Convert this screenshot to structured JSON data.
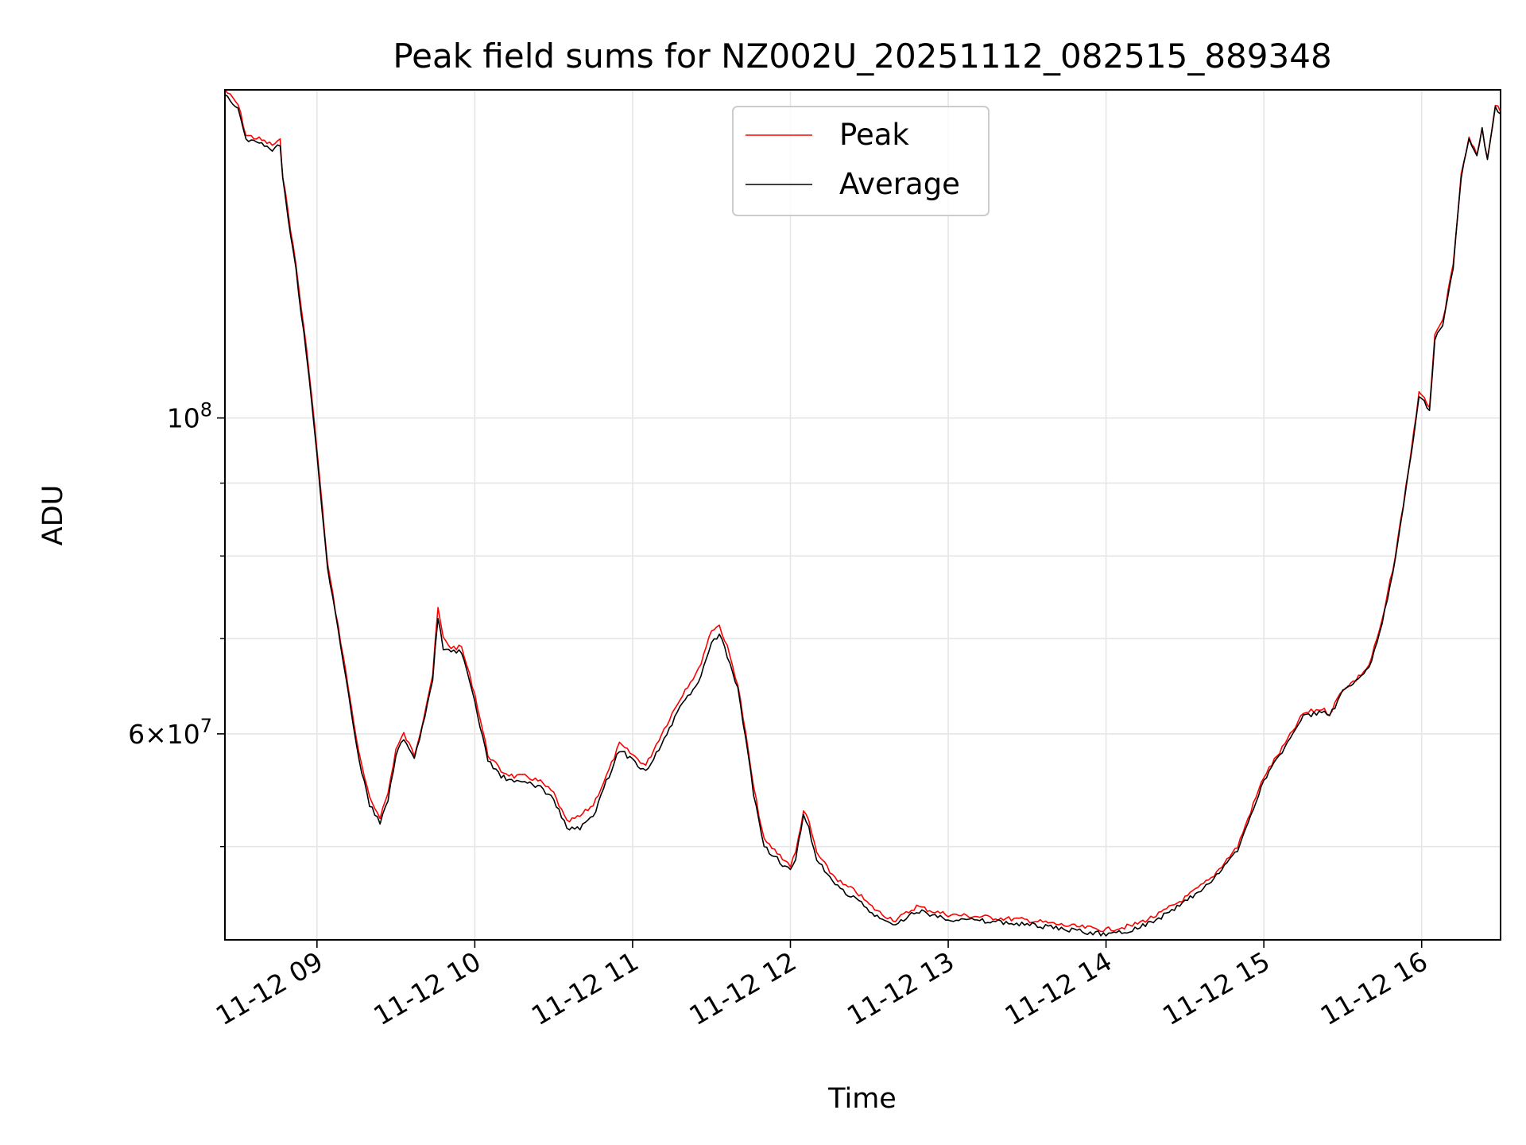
{
  "chart_data": {
    "type": "line",
    "title": "Peak field sums for NZ002U_20251112_082515_889348",
    "xlabel": "Time",
    "ylabel": "ADU",
    "y_scale": "log",
    "grid": true,
    "legend_position": "top-center",
    "xlim": [
      "2025-11-12 08:25",
      "2025-11-12 16:30"
    ],
    "ylim": [
      43000000,
      170000000
    ],
    "x_ticks": [
      {
        "value": "2025-11-12 09:00",
        "label": "11-12 09"
      },
      {
        "value": "2025-11-12 10:00",
        "label": "11-12 10"
      },
      {
        "value": "2025-11-12 11:00",
        "label": "11-12 11"
      },
      {
        "value": "2025-11-12 12:00",
        "label": "11-12 12"
      },
      {
        "value": "2025-11-12 13:00",
        "label": "11-12 13"
      },
      {
        "value": "2025-11-12 14:00",
        "label": "11-12 14"
      },
      {
        "value": "2025-11-12 15:00",
        "label": "11-12 15"
      },
      {
        "value": "2025-11-12 16:00",
        "label": "11-12 16"
      }
    ],
    "y_ticks_major": [
      {
        "value": 100000000,
        "base": "10",
        "exp": "8"
      },
      {
        "value": 60000000,
        "mantissa": "6",
        "base": "10",
        "exp": "7"
      }
    ],
    "y_ticks_minor": [
      50000000,
      70000000,
      80000000,
      90000000
    ],
    "series": [
      {
        "name": "Peak",
        "color": "#ff0000",
        "points": [
          [
            "2025-11-12 08:25",
            170000000
          ],
          [
            "2025-11-12 08:30",
            166000000
          ],
          [
            "2025-11-12 08:33",
            158000000
          ],
          [
            "2025-11-12 08:38",
            157000000
          ],
          [
            "2025-11-12 08:43",
            155500000
          ],
          [
            "2025-11-12 08:46",
            156500000
          ],
          [
            "2025-11-12 08:47",
            148000000
          ],
          [
            "2025-11-12 08:52",
            128000000
          ],
          [
            "2025-11-12 08:57",
            108000000
          ],
          [
            "2025-11-12 09:00",
            95000000
          ],
          [
            "2025-11-12 09:04",
            79000000
          ],
          [
            "2025-11-12 09:10",
            68000000
          ],
          [
            "2025-11-12 09:16",
            58000000
          ],
          [
            "2025-11-12 09:20",
            54000000
          ],
          [
            "2025-11-12 09:24",
            52500000
          ],
          [
            "2025-11-12 09:27",
            54500000
          ],
          [
            "2025-11-12 09:30",
            58500000
          ],
          [
            "2025-11-12 09:33",
            60000000
          ],
          [
            "2025-11-12 09:37",
            58000000
          ],
          [
            "2025-11-12 09:40",
            61000000
          ],
          [
            "2025-11-12 09:42",
            63500000
          ],
          [
            "2025-11-12 09:44",
            66000000
          ],
          [
            "2025-11-12 09:46",
            73500000
          ],
          [
            "2025-11-12 09:48",
            70000000
          ],
          [
            "2025-11-12 09:51",
            69000000
          ],
          [
            "2025-11-12 09:55",
            69000000
          ],
          [
            "2025-11-12 10:00",
            64000000
          ],
          [
            "2025-11-12 10:05",
            58000000
          ],
          [
            "2025-11-12 10:10",
            56500000
          ],
          [
            "2025-11-12 10:15",
            56000000
          ],
          [
            "2025-11-12 10:20",
            56000000
          ],
          [
            "2025-11-12 10:25",
            55500000
          ],
          [
            "2025-11-12 10:30",
            54500000
          ],
          [
            "2025-11-12 10:35",
            52000000
          ],
          [
            "2025-11-12 10:40",
            52500000
          ],
          [
            "2025-11-12 10:45",
            53500000
          ],
          [
            "2025-11-12 10:50",
            56000000
          ],
          [
            "2025-11-12 10:55",
            59000000
          ],
          [
            "2025-11-12 11:00",
            58000000
          ],
          [
            "2025-11-12 11:05",
            57000000
          ],
          [
            "2025-11-12 11:10",
            59500000
          ],
          [
            "2025-11-12 11:15",
            62000000
          ],
          [
            "2025-11-12 11:20",
            64500000
          ],
          [
            "2025-11-12 11:25",
            66500000
          ],
          [
            "2025-11-12 11:30",
            71000000
          ],
          [
            "2025-11-12 11:33",
            71500000
          ],
          [
            "2025-11-12 11:36",
            69000000
          ],
          [
            "2025-11-12 11:40",
            65000000
          ],
          [
            "2025-11-12 11:43",
            60000000
          ],
          [
            "2025-11-12 11:46",
            55000000
          ],
          [
            "2025-11-12 11:50",
            50500000
          ],
          [
            "2025-11-12 11:55",
            49500000
          ],
          [
            "2025-11-12 12:00",
            48500000
          ],
          [
            "2025-11-12 12:02",
            49500000
          ],
          [
            "2025-11-12 12:05",
            53000000
          ],
          [
            "2025-11-12 12:07",
            52000000
          ],
          [
            "2025-11-12 12:10",
            49500000
          ],
          [
            "2025-11-12 12:15",
            48000000
          ],
          [
            "2025-11-12 12:20",
            47000000
          ],
          [
            "2025-11-12 12:25",
            46500000
          ],
          [
            "2025-11-12 12:30",
            45500000
          ],
          [
            "2025-11-12 12:35",
            44800000
          ],
          [
            "2025-11-12 12:40",
            44400000
          ],
          [
            "2025-11-12 12:45",
            45000000
          ],
          [
            "2025-11-12 12:48",
            45400000
          ],
          [
            "2025-11-12 12:55",
            45000000
          ],
          [
            "2025-11-12 13:00",
            44800000
          ],
          [
            "2025-11-12 13:15",
            44600000
          ],
          [
            "2025-11-12 13:30",
            44400000
          ],
          [
            "2025-11-12 13:45",
            44000000
          ],
          [
            "2025-11-12 14:00",
            43700000
          ],
          [
            "2025-11-12 14:10",
            44000000
          ],
          [
            "2025-11-12 14:20",
            44800000
          ],
          [
            "2025-11-12 14:30",
            46000000
          ],
          [
            "2025-11-12 14:40",
            47500000
          ],
          [
            "2025-11-12 14:50",
            50000000
          ],
          [
            "2025-11-12 15:00",
            56000000
          ],
          [
            "2025-11-12 15:08",
            59000000
          ],
          [
            "2025-11-12 15:15",
            62000000
          ],
          [
            "2025-11-12 15:22",
            62500000
          ],
          [
            "2025-11-12 15:25",
            62000000
          ],
          [
            "2025-11-12 15:30",
            64500000
          ],
          [
            "2025-11-12 15:35",
            65500000
          ],
          [
            "2025-11-12 15:40",
            67000000
          ],
          [
            "2025-11-12 15:45",
            72000000
          ],
          [
            "2025-11-12 15:50",
            80000000
          ],
          [
            "2025-11-12 15:55",
            92000000
          ],
          [
            "2025-11-12 15:59",
            104000000
          ],
          [
            "2025-11-12 16:03",
            102000000
          ],
          [
            "2025-11-12 16:05",
            114000000
          ],
          [
            "2025-11-12 16:08",
            117000000
          ],
          [
            "2025-11-12 16:12",
            128000000
          ],
          [
            "2025-11-12 16:15",
            148000000
          ],
          [
            "2025-11-12 16:18",
            157000000
          ],
          [
            "2025-11-12 16:21",
            153000000
          ],
          [
            "2025-11-12 16:23",
            160000000
          ],
          [
            "2025-11-12 16:25",
            152000000
          ],
          [
            "2025-11-12 16:28",
            166000000
          ],
          [
            "2025-11-12 16:30",
            164000000
          ]
        ]
      },
      {
        "name": "Average",
        "color": "#000000",
        "points": [
          [
            "2025-11-12 08:25",
            169000000
          ],
          [
            "2025-11-12 08:30",
            165000000
          ],
          [
            "2025-11-12 08:33",
            157000000
          ],
          [
            "2025-11-12 08:38",
            156000000
          ],
          [
            "2025-11-12 08:43",
            154500000
          ],
          [
            "2025-11-12 08:46",
            155500000
          ],
          [
            "2025-11-12 08:47",
            147000000
          ],
          [
            "2025-11-12 08:52",
            127000000
          ],
          [
            "2025-11-12 08:57",
            107000000
          ],
          [
            "2025-11-12 09:00",
            94000000
          ],
          [
            "2025-11-12 09:04",
            78500000
          ],
          [
            "2025-11-12 09:10",
            67500000
          ],
          [
            "2025-11-12 09:16",
            57500000
          ],
          [
            "2025-11-12 09:20",
            53500000
          ],
          [
            "2025-11-12 09:24",
            52000000
          ],
          [
            "2025-11-12 09:27",
            54000000
          ],
          [
            "2025-11-12 09:30",
            58000000
          ],
          [
            "2025-11-12 09:33",
            59500000
          ],
          [
            "2025-11-12 09:37",
            57500000
          ],
          [
            "2025-11-12 09:40",
            60500000
          ],
          [
            "2025-11-12 09:42",
            63000000
          ],
          [
            "2025-11-12 09:44",
            65500000
          ],
          [
            "2025-11-12 09:46",
            72500000
          ],
          [
            "2025-11-12 09:48",
            69000000
          ],
          [
            "2025-11-12 09:51",
            68500000
          ],
          [
            "2025-11-12 09:55",
            68500000
          ],
          [
            "2025-11-12 10:00",
            63000000
          ],
          [
            "2025-11-12 10:05",
            57500000
          ],
          [
            "2025-11-12 10:10",
            56000000
          ],
          [
            "2025-11-12 10:15",
            55500000
          ],
          [
            "2025-11-12 10:20",
            55500000
          ],
          [
            "2025-11-12 10:25",
            55000000
          ],
          [
            "2025-11-12 10:30",
            54000000
          ],
          [
            "2025-11-12 10:35",
            51500000
          ],
          [
            "2025-11-12 10:40",
            51500000
          ],
          [
            "2025-11-12 10:45",
            52500000
          ],
          [
            "2025-11-12 10:50",
            55500000
          ],
          [
            "2025-11-12 10:55",
            58500000
          ],
          [
            "2025-11-12 11:00",
            57500000
          ],
          [
            "2025-11-12 11:05",
            56500000
          ],
          [
            "2025-11-12 11:10",
            58500000
          ],
          [
            "2025-11-12 11:15",
            61000000
          ],
          [
            "2025-11-12 11:20",
            63500000
          ],
          [
            "2025-11-12 11:25",
            65000000
          ],
          [
            "2025-11-12 11:30",
            69500000
          ],
          [
            "2025-11-12 11:33",
            70500000
          ],
          [
            "2025-11-12 11:36",
            68000000
          ],
          [
            "2025-11-12 11:40",
            64500000
          ],
          [
            "2025-11-12 11:43",
            59500000
          ],
          [
            "2025-11-12 11:46",
            54500000
          ],
          [
            "2025-11-12 11:50",
            50000000
          ],
          [
            "2025-11-12 11:55",
            49000000
          ],
          [
            "2025-11-12 12:00",
            48000000
          ],
          [
            "2025-11-12 12:02",
            49000000
          ],
          [
            "2025-11-12 12:05",
            52500000
          ],
          [
            "2025-11-12 12:07",
            51500000
          ],
          [
            "2025-11-12 12:10",
            49000000
          ],
          [
            "2025-11-12 12:15",
            47500000
          ],
          [
            "2025-11-12 12:20",
            46500000
          ],
          [
            "2025-11-12 12:25",
            46000000
          ],
          [
            "2025-11-12 12:30",
            45000000
          ],
          [
            "2025-11-12 12:35",
            44400000
          ],
          [
            "2025-11-12 12:40",
            44000000
          ],
          [
            "2025-11-12 12:45",
            44700000
          ],
          [
            "2025-11-12 12:48",
            45100000
          ],
          [
            "2025-11-12 12:55",
            44700000
          ],
          [
            "2025-11-12 13:00",
            44500000
          ],
          [
            "2025-11-12 13:15",
            44300000
          ],
          [
            "2025-11-12 13:30",
            44100000
          ],
          [
            "2025-11-12 13:45",
            43700000
          ],
          [
            "2025-11-12 14:00",
            43400000
          ],
          [
            "2025-11-12 14:10",
            43700000
          ],
          [
            "2025-11-12 14:20",
            44500000
          ],
          [
            "2025-11-12 14:30",
            45700000
          ],
          [
            "2025-11-12 14:40",
            47200000
          ],
          [
            "2025-11-12 14:50",
            49700000
          ],
          [
            "2025-11-12 15:00",
            55700000
          ],
          [
            "2025-11-12 15:08",
            58700000
          ],
          [
            "2025-11-12 15:15",
            61700000
          ],
          [
            "2025-11-12 15:22",
            62200000
          ],
          [
            "2025-11-12 15:25",
            61700000
          ],
          [
            "2025-11-12 15:30",
            64200000
          ],
          [
            "2025-11-12 15:35",
            65200000
          ],
          [
            "2025-11-12 15:40",
            66700000
          ],
          [
            "2025-11-12 15:45",
            71700000
          ],
          [
            "2025-11-12 15:50",
            79700000
          ],
          [
            "2025-11-12 15:55",
            91700000
          ],
          [
            "2025-11-12 15:59",
            103500000
          ],
          [
            "2025-11-12 16:03",
            101500000
          ],
          [
            "2025-11-12 16:05",
            113500000
          ],
          [
            "2025-11-12 16:08",
            116500000
          ],
          [
            "2025-11-12 16:12",
            127500000
          ],
          [
            "2025-11-12 16:15",
            147500000
          ],
          [
            "2025-11-12 16:18",
            156500000
          ],
          [
            "2025-11-12 16:21",
            152500000
          ],
          [
            "2025-11-12 16:23",
            159500000
          ],
          [
            "2025-11-12 16:25",
            151500000
          ],
          [
            "2025-11-12 16:28",
            165500000
          ],
          [
            "2025-11-12 16:30",
            163500000
          ]
        ]
      }
    ]
  }
}
